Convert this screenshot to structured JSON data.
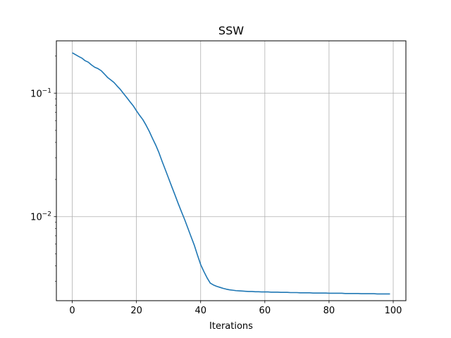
{
  "chart_data": {
    "type": "line",
    "title": "SSW",
    "xlabel": "Iterations",
    "ylabel": "",
    "yscale": "log",
    "grid": true,
    "xlim": [
      -4.95,
      103.95
    ],
    "ylim": [
      0.00209,
      0.265
    ],
    "xticks": [
      0,
      20,
      40,
      60,
      80,
      100
    ],
    "xtick_labels": [
      "0",
      "20",
      "40",
      "60",
      "80",
      "100"
    ],
    "yticks": [
      0.01,
      0.1
    ],
    "ytick_labels": [
      {
        "base": "10",
        "exp": "−2"
      },
      {
        "base": "10",
        "exp": "−1"
      }
    ],
    "series": [
      {
        "color": "#1f77b4",
        "x": [
          0,
          1,
          2,
          3,
          4,
          5,
          6,
          7,
          8,
          9,
          10,
          11,
          12,
          13,
          14,
          15,
          16,
          17,
          18,
          19,
          20,
          21,
          22,
          23,
          24,
          25,
          26,
          27,
          28,
          29,
          30,
          31,
          32,
          33,
          34,
          35,
          36,
          37,
          38,
          39,
          40,
          41,
          42,
          43,
          44,
          45,
          46,
          47,
          48,
          49,
          50,
          51,
          52,
          53,
          54,
          55,
          56,
          57,
          58,
          59,
          60,
          61,
          62,
          63,
          64,
          65,
          66,
          67,
          68,
          69,
          70,
          71,
          72,
          73,
          74,
          75,
          76,
          77,
          78,
          79,
          80,
          81,
          82,
          83,
          84,
          85,
          86,
          87,
          88,
          89,
          90,
          91,
          92,
          93,
          94,
          95,
          96,
          97,
          98,
          99
        ],
        "y": [
          0.212,
          0.205,
          0.198,
          0.192,
          0.183,
          0.178,
          0.169,
          0.162,
          0.158,
          0.152,
          0.143,
          0.134,
          0.128,
          0.122,
          0.114,
          0.107,
          0.099,
          0.092,
          0.085,
          0.079,
          0.072,
          0.066,
          0.061,
          0.055,
          0.049,
          0.043,
          0.038,
          0.033,
          0.028,
          0.024,
          0.0205,
          0.0175,
          0.015,
          0.0128,
          0.011,
          0.0095,
          0.0081,
          0.0069,
          0.0059,
          0.0049,
          0.0041,
          0.0036,
          0.0032,
          0.0029,
          0.0028,
          0.00273,
          0.00268,
          0.00263,
          0.00259,
          0.00256,
          0.00254,
          0.00252,
          0.00251,
          0.0025,
          0.00249,
          0.00248,
          0.00248,
          0.00247,
          0.00247,
          0.00246,
          0.00246,
          0.00246,
          0.00245,
          0.00245,
          0.00245,
          0.00244,
          0.00244,
          0.00244,
          0.00243,
          0.00243,
          0.00243,
          0.00242,
          0.00242,
          0.00242,
          0.00242,
          0.00241,
          0.00241,
          0.00241,
          0.00241,
          0.00241,
          0.0024,
          0.0024,
          0.0024,
          0.0024,
          0.0024,
          0.00239,
          0.00239,
          0.00239,
          0.00239,
          0.00239,
          0.00238,
          0.00238,
          0.00238,
          0.00238,
          0.00238,
          0.00237,
          0.00237,
          0.00237,
          0.00237,
          0.00237
        ]
      }
    ]
  }
}
